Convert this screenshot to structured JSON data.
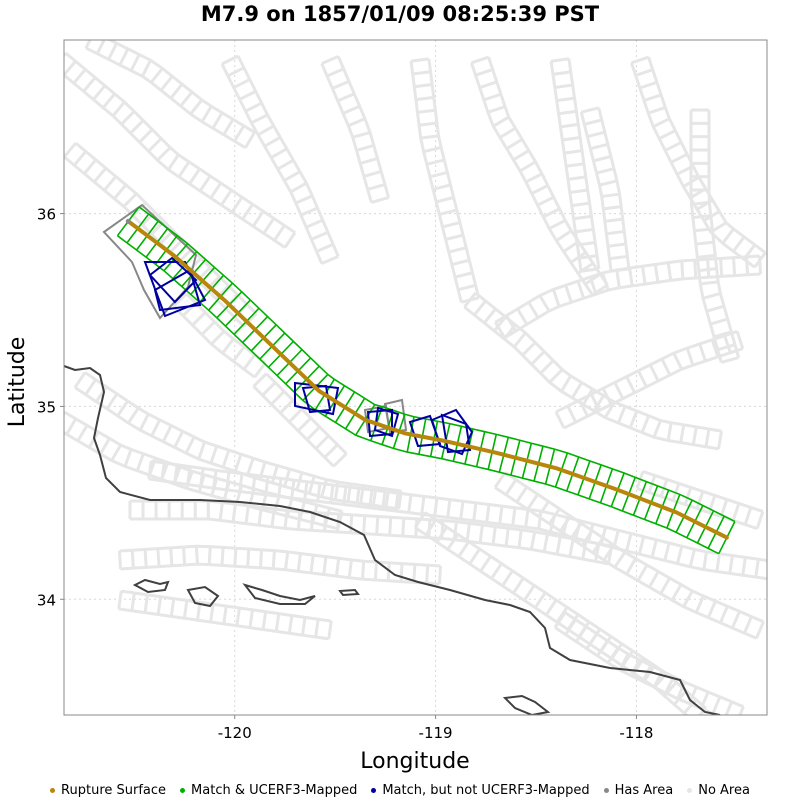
{
  "title": "M7.9 on 1857/01/09 08:25:39 PST",
  "chart_data": {
    "type": "map",
    "xlabel": "Longitude",
    "ylabel": "Latitude",
    "xlim": [
      -120.85,
      -117.35
    ],
    "ylim": [
      33.4,
      36.9
    ],
    "x_ticks": [
      {
        "value": -120,
        "label": "-120"
      },
      {
        "value": -119,
        "label": "-119"
      },
      {
        "value": -118,
        "label": "-118"
      }
    ],
    "y_ticks": [
      {
        "value": 34,
        "label": "34"
      },
      {
        "value": 35,
        "label": "35"
      },
      {
        "value": 36,
        "label": "36"
      }
    ],
    "grid": true,
    "colors": {
      "rupture": "#b8860b",
      "match_mapped": "#00b000",
      "match_not_mapped": "#0000a0",
      "has_area": "#888888",
      "no_area": "#e6e6e6",
      "coast": "#404040"
    },
    "rupture_trace": [
      [
        -120.53,
        35.96
      ],
      [
        -120.3,
        35.78
      ],
      [
        -120.05,
        35.55
      ],
      [
        -119.8,
        35.3
      ],
      [
        -119.58,
        35.08
      ],
      [
        -119.35,
        34.93
      ],
      [
        -119.15,
        34.86
      ],
      [
        -118.95,
        34.82
      ],
      [
        -118.7,
        34.76
      ],
      [
        -118.4,
        34.68
      ],
      [
        -118.1,
        34.57
      ],
      [
        -117.8,
        34.45
      ],
      [
        -117.55,
        34.32
      ]
    ],
    "legend": [
      {
        "label": "Rupture Surface",
        "color": "#b8860b"
      },
      {
        "label": "Match & UCERF3-Mapped",
        "color": "#00b000"
      },
      {
        "label": "Match, but not UCERF3-Mapped",
        "color": "#0000a0"
      },
      {
        "label": "Has Area",
        "color": "#888888"
      },
      {
        "label": "No Area",
        "color": "#e6e6e6"
      }
    ]
  }
}
